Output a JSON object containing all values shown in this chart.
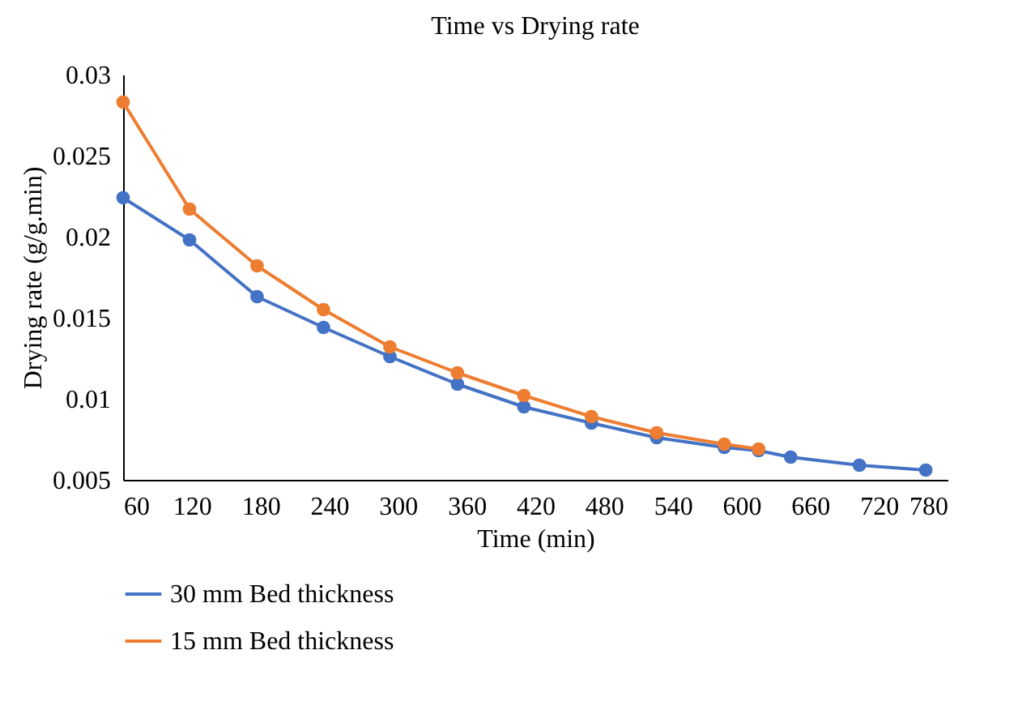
{
  "chart_data": {
    "type": "line",
    "title": "Time vs Drying rate",
    "xlabel": "Time (min)",
    "ylabel": "Drying rate (g/g.min)",
    "xlim": [
      60,
      780
    ],
    "xticks": [
      60,
      120,
      180,
      240,
      300,
      360,
      420,
      480,
      540,
      600,
      660,
      720,
      780
    ],
    "ylim": [
      0.005,
      0.03
    ],
    "yticks": [
      0.005,
      0.01,
      0.015,
      0.02,
      0.025,
      0.03
    ],
    "grid": false,
    "legend": "bottom left",
    "marker": "circle",
    "line_style": "solid",
    "series": [
      {
        "name": "30 mm Bed thickness",
        "color": "#4472c4",
        "x": [
          60,
          118,
          177,
          235,
          293,
          352,
          410,
          469,
          526,
          585,
          615,
          643,
          703,
          761
        ],
        "values": [
          0.0224,
          0.0198,
          0.0163,
          0.0144,
          0.0126,
          0.0109,
          0.0095,
          0.0085,
          0.0076,
          0.007,
          0.0068,
          0.0064,
          0.0059,
          0.0056
        ]
      },
      {
        "name": "15 mm Bed thickness",
        "color": "#ed7d31",
        "x": [
          60,
          118,
          177,
          235,
          293,
          352,
          410,
          469,
          526,
          585,
          615
        ],
        "values": [
          0.0283,
          0.0217,
          0.0182,
          0.0155,
          0.0132,
          0.0116,
          0.0102,
          0.0089,
          0.0079,
          0.0072,
          0.0069
        ]
      }
    ]
  }
}
